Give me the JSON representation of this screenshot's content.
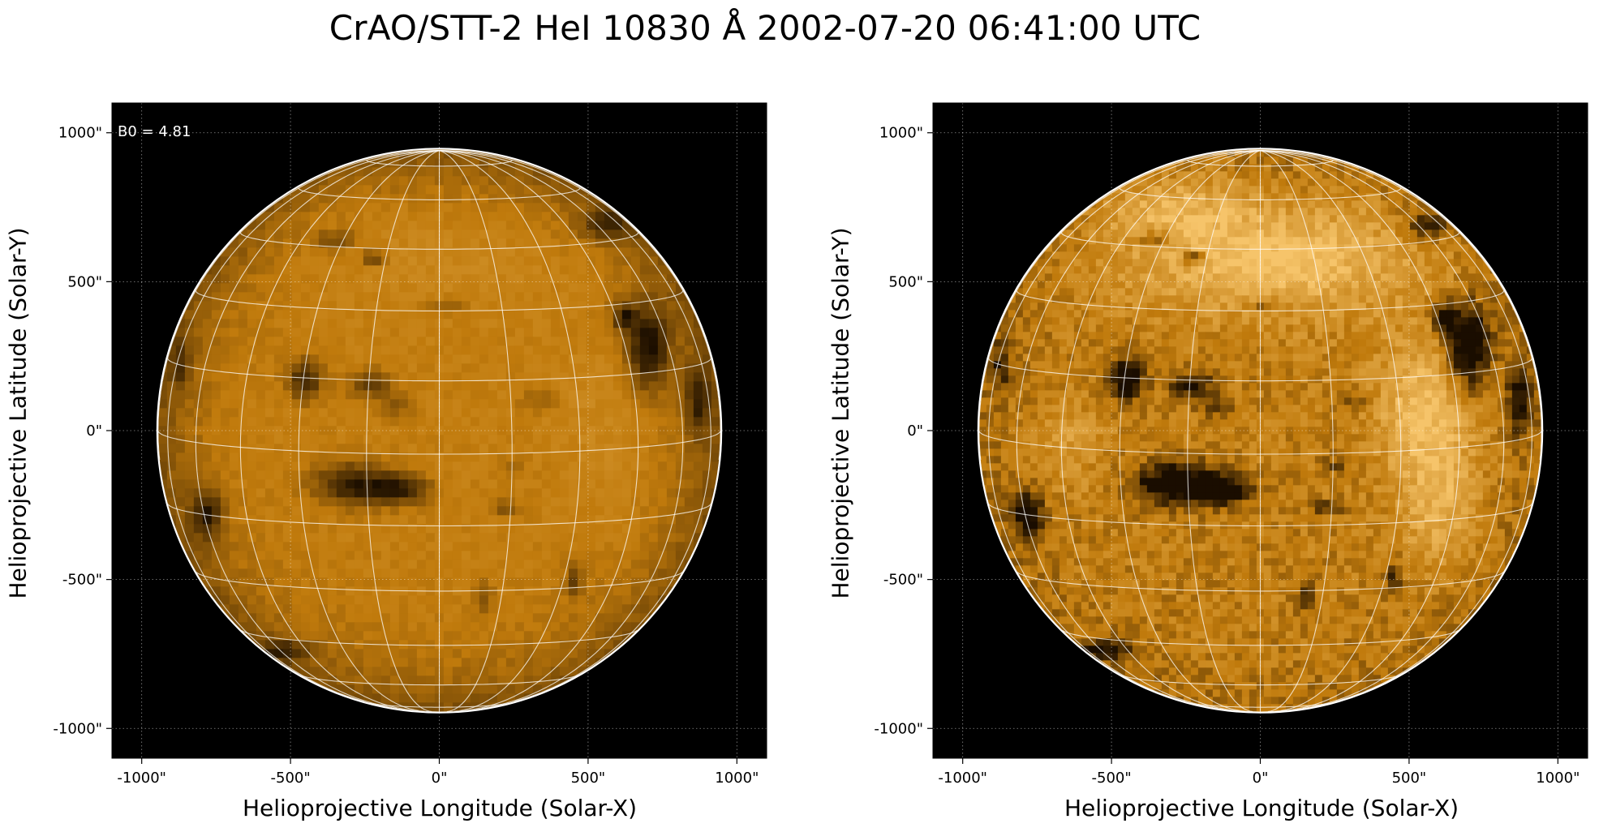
{
  "figure": {
    "title": "CrAO/STT-2 HeI 10830 Å 2002-07-20 06:41:00 UTC"
  },
  "axes": {
    "xlabel": "Helioprojective Longitude (Solar-X)",
    "ylabel": "Helioprojective Latitude (Solar-Y)",
    "xticks": [
      "-1000\"",
      "-500\"",
      "0\"",
      "500\"",
      "1000\""
    ],
    "yticks": [
      "1000\"",
      "500\"",
      "0\"",
      "-500\"",
      "-1000\""
    ],
    "tick_values": [
      -1000,
      -500,
      0,
      500,
      1000
    ],
    "range": [
      -1100,
      1100
    ]
  },
  "panels": [
    {
      "annotation": "B0 = 4.81",
      "style": "low-contrast"
    },
    {
      "annotation": "",
      "style": "high-contrast"
    }
  ],
  "solar_disk": {
    "radius_arcsec": 945
  },
  "colors": {
    "background": "#000000",
    "disk_base": "#c07a0c",
    "disk_bright": "#f6c46a",
    "disk_dark": "#1a0d00",
    "grid": "#ffffff",
    "limb": "#ffffff"
  }
}
